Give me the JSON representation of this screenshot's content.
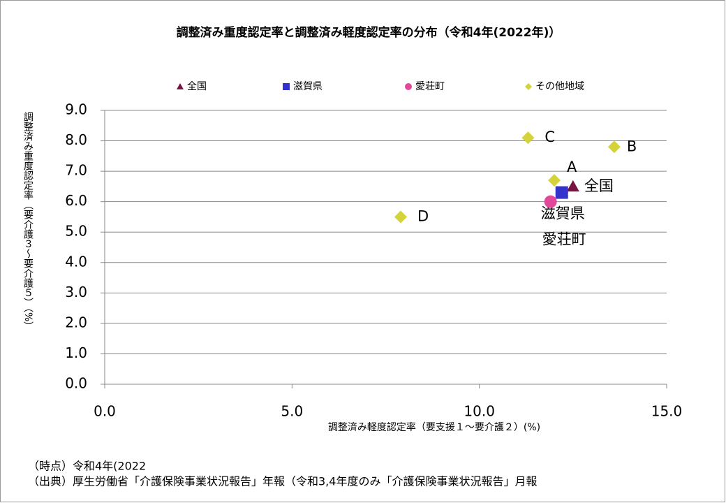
{
  "chart_data": {
    "type": "scatter",
    "title": "調整済み重度認定率と調整済み軽度認定率の分布（令和4年(2022年)）",
    "x_label": "調整済み軽度認定率（要支援１～要介護２）(%)",
    "y_label": "調整済み重度認定率（要介護３～要介護５）（%）",
    "series": [
      {
        "name": "全国",
        "color": "#7a1242",
        "marker": "triangle",
        "x": [
          12.5
        ],
        "values": [
          6.5
        ],
        "point_labels": [
          "全国"
        ]
      },
      {
        "name": "滋賀県",
        "color": "#3333cc",
        "marker": "square",
        "x": [
          12.2
        ],
        "values": [
          6.3
        ],
        "point_labels": [
          "滋賀県"
        ]
      },
      {
        "name": "愛荘町",
        "color": "#e0489a",
        "marker": "circle",
        "x": [
          11.9
        ],
        "values": [
          6.0
        ],
        "point_labels": [
          "愛荘町"
        ]
      },
      {
        "name": "その他地域",
        "color": "#d4d43a",
        "marker": "diamond",
        "x": [
          12.0,
          13.6,
          11.3,
          7.9
        ],
        "values": [
          6.7,
          7.8,
          8.1,
          5.5
        ],
        "point_labels": [
          "A",
          "B",
          "C",
          "D"
        ]
      }
    ],
    "xlim": [
      0,
      15
    ],
    "xticks": [
      {
        "value": 0,
        "label": "0.0"
      },
      {
        "value": 5,
        "label": "5.0"
      },
      {
        "value": 10,
        "label": "10.0"
      },
      {
        "value": 15,
        "label": "15.0"
      }
    ],
    "ylim": [
      0,
      9
    ],
    "yticks": [
      {
        "value": 0,
        "label": "0.0"
      },
      {
        "value": 1,
        "label": "1.0"
      },
      {
        "value": 2,
        "label": "2.0"
      },
      {
        "value": 3,
        "label": "3.0"
      },
      {
        "value": 4,
        "label": "4.0"
      },
      {
        "value": 5,
        "label": "5.0"
      },
      {
        "value": 6,
        "label": "6.0"
      },
      {
        "value": 7,
        "label": "7.0"
      },
      {
        "value": 8,
        "label": "8.0"
      },
      {
        "value": 9,
        "label": "9.0"
      }
    ],
    "grid": true,
    "legend": "top",
    "notes": [
      "（時点）令和4年(2022",
      "（出典）厚生労働省「介護保険事業状況報告」年報（令和3,4年度のみ「介護保険事業状況報告」月報"
    ]
  }
}
